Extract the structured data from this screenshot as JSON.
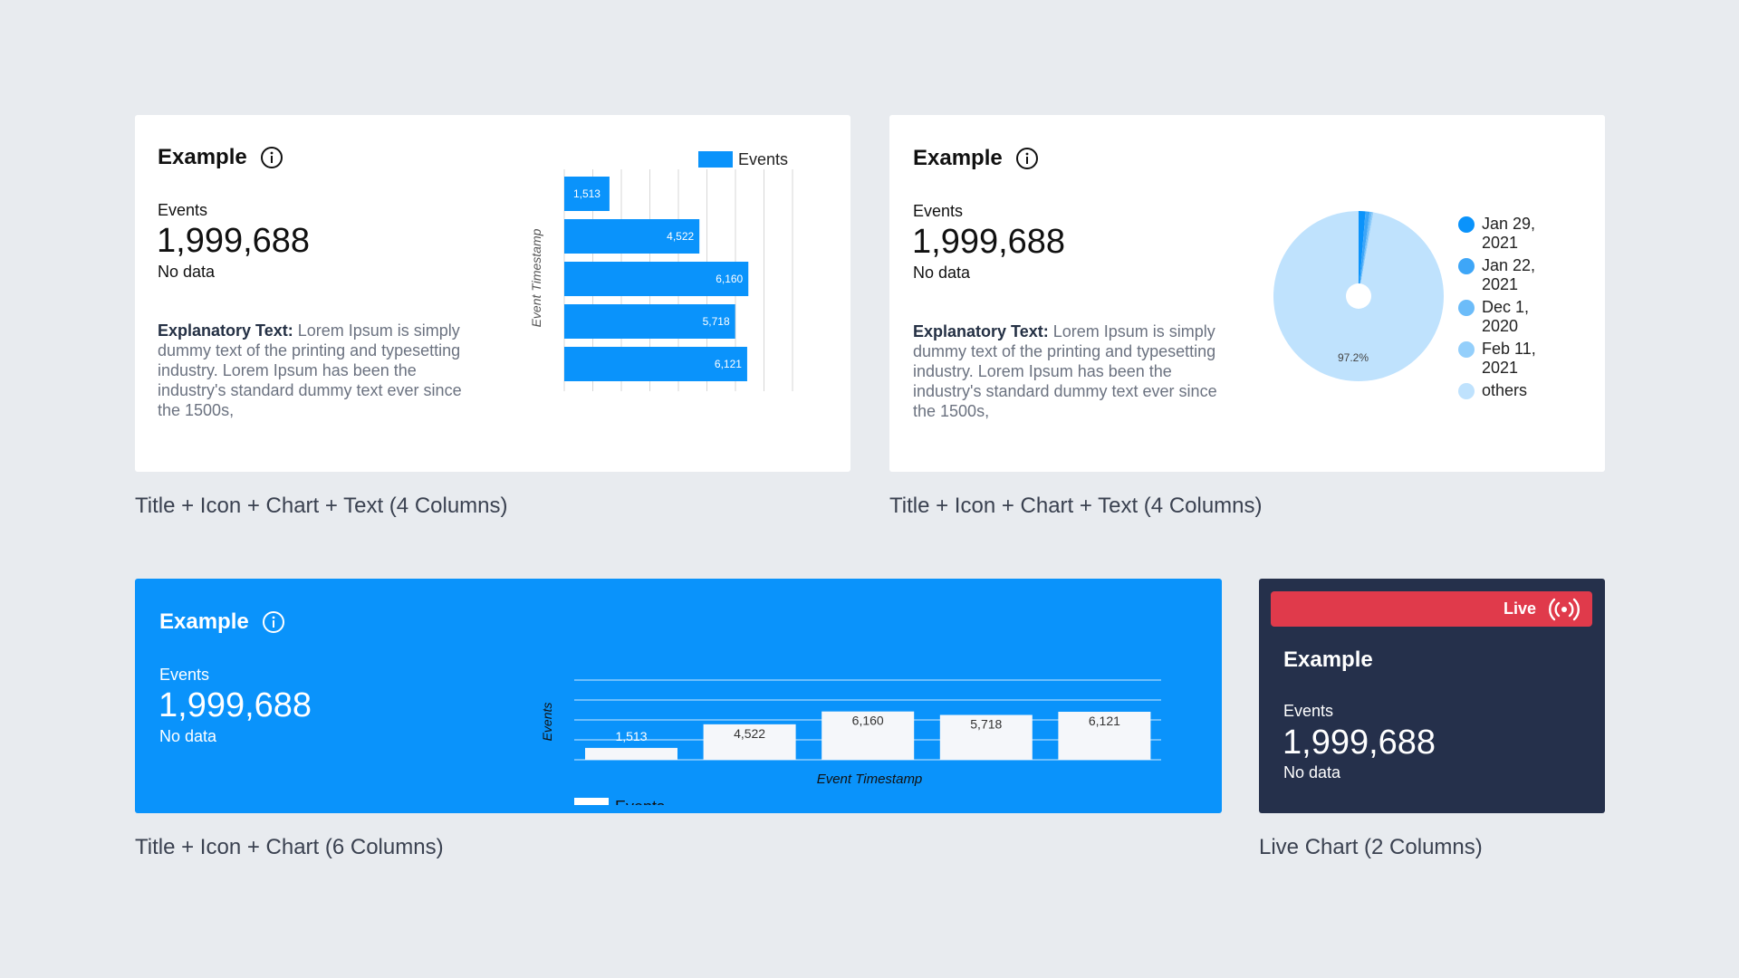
{
  "cards": [
    {
      "title": "Example",
      "metric": {
        "label": "Events",
        "value": "1,999,688",
        "sub": "No data"
      },
      "explain": {
        "bold": "Explanatory Text:",
        "text": "Lorem Ipsum is simply dummy text of the printing and typesetting industry. Lorem Ipsum has been the industry's standard dummy text ever since the 1500s,"
      },
      "caption": "Title + Icon + Chart + Text (4 Columns)"
    },
    {
      "title": "Example",
      "metric": {
        "label": "Events",
        "value": "1,999,688",
        "sub": "No data"
      },
      "explain": {
        "bold": "Explanatory Text:",
        "text": "Lorem Ipsum is simply dummy text of the printing and typesetting industry. Lorem Ipsum has been the industry's standard dummy text ever since the 1500s,"
      },
      "caption": "Title + Icon + Chart + Text (4 Columns)"
    },
    {
      "title": "Example",
      "metric": {
        "label": "Events",
        "value": "1,999,688",
        "sub": "No data"
      },
      "caption": "Title + Icon + Chart (6 Columns)"
    },
    {
      "title": "Example",
      "live_label": "Live",
      "metric": {
        "label": "Events",
        "value": "1,999,688",
        "sub": "No data"
      },
      "caption": "Live Chart (2 Columns)"
    }
  ],
  "icons": {
    "info": "info-icon",
    "live": "broadcast-icon"
  },
  "colors": {
    "accent": "#0a93fb",
    "dark": "#25304b",
    "live": "#e03a4b",
    "background": "#e8ebef"
  },
  "chart_data": [
    {
      "type": "bar",
      "orientation": "horizontal",
      "categories": [
        "",
        "",
        "",
        "",
        ""
      ],
      "series": [
        {
          "name": "Events",
          "values": [
            1513,
            4522,
            6160,
            5718,
            6121
          ]
        }
      ],
      "data_labels": [
        "1,513",
        "4,522",
        "6,160",
        "5,718",
        "6,121"
      ],
      "ylabel": "Event Timestamp",
      "legend": "top-right",
      "grid": true
    },
    {
      "type": "pie",
      "labels": [
        "Jan 29, 2021",
        "Jan 22, 2021",
        "Dec 1, 2020",
        "Feb 11, 2021",
        "others"
      ],
      "values": [
        1.3,
        0.8,
        0.4,
        0.3,
        97.2
      ],
      "slice_label": "97.2%",
      "colors": [
        "#0a93fb",
        "#3ea6f7",
        "#6cbcf9",
        "#94cffb",
        "#bfe2fd"
      ],
      "legend": "right"
    },
    {
      "type": "bar",
      "orientation": "vertical",
      "categories": [
        "",
        "",
        "",
        "",
        ""
      ],
      "series": [
        {
          "name": "Events",
          "values": [
            1513,
            4522,
            6160,
            5718,
            6121
          ]
        }
      ],
      "data_labels": [
        "1,513",
        "4,522",
        "6,160",
        "5,718",
        "6,121"
      ],
      "xlabel": "Event Timestamp",
      "ylabel": "Events",
      "legend": "bottom-left",
      "grid": true
    }
  ]
}
